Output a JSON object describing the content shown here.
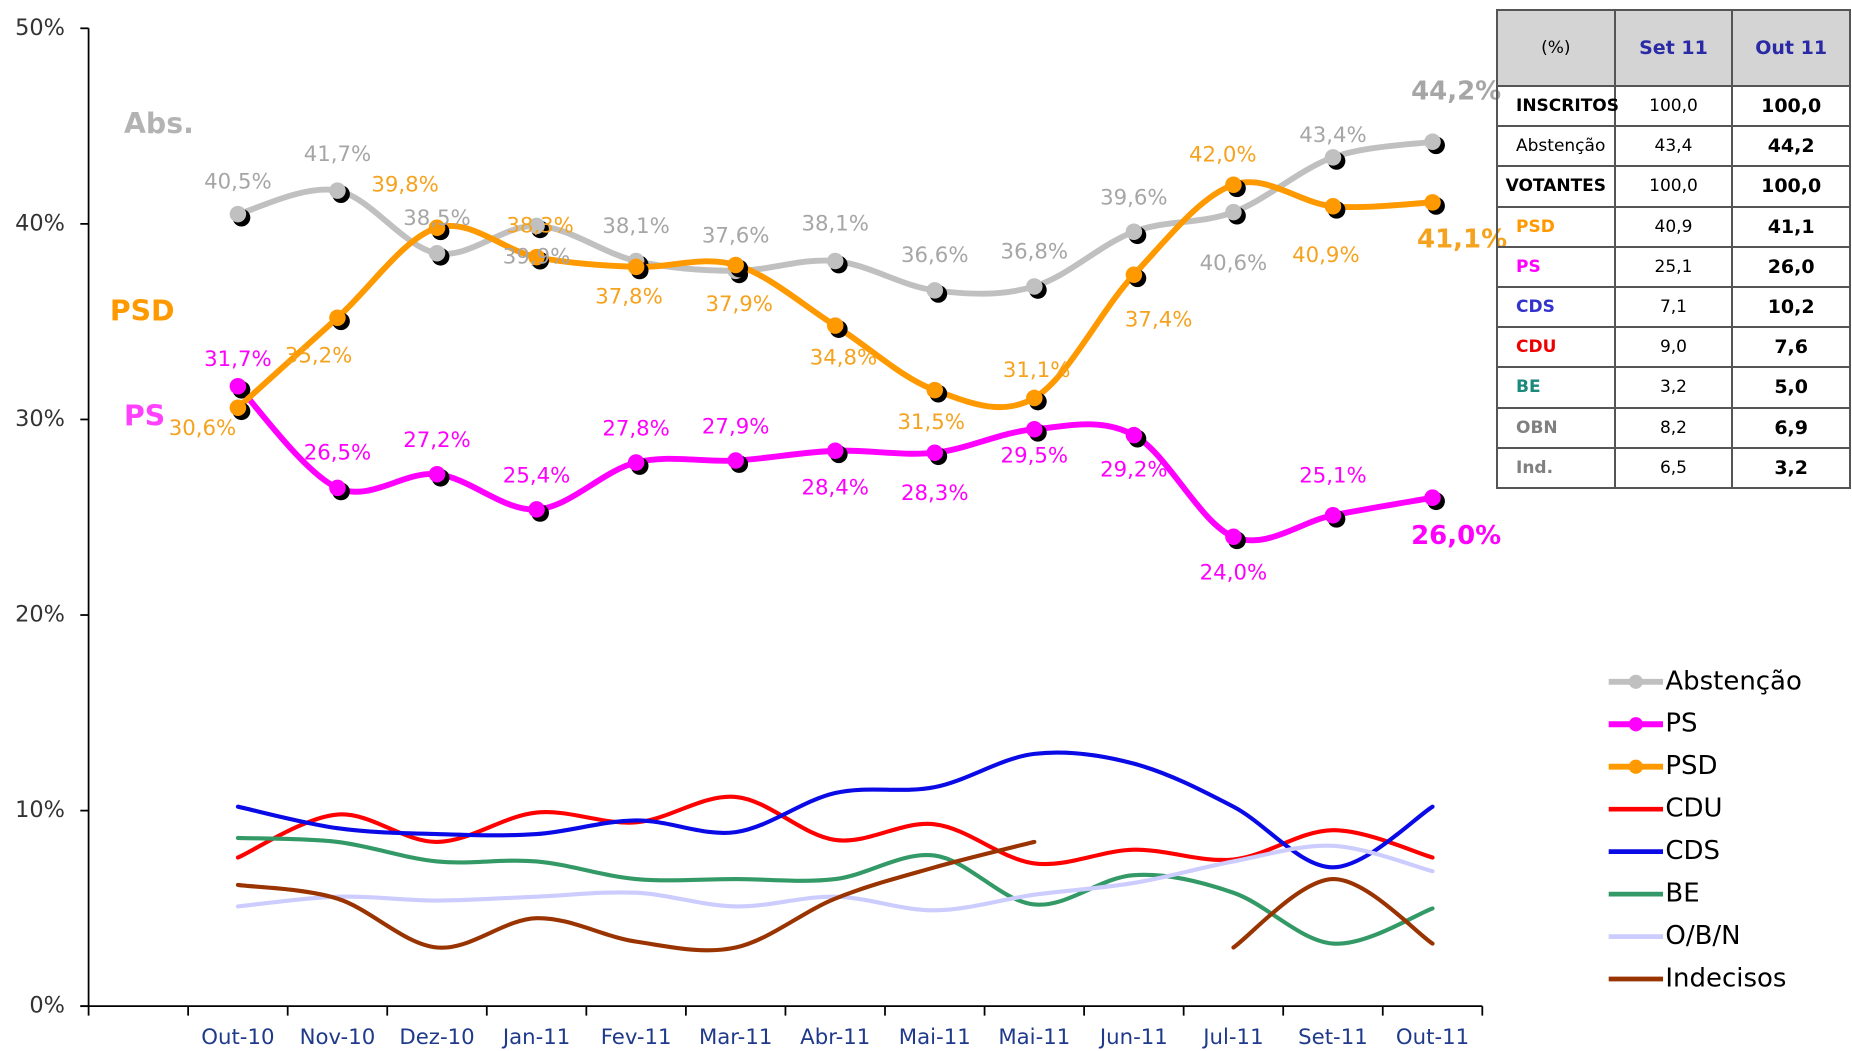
{
  "chart_data": {
    "type": "line",
    "categories": [
      "Out-10",
      "Nov-10",
      "Dez-10",
      "Jan-11",
      "Fev-11",
      "Mar-11",
      "Abr-11",
      "Mai-11",
      "Mai-11",
      "Jun-11",
      "Jul-11",
      "Set-11",
      "Out-11"
    ],
    "ylim": [
      0,
      50
    ],
    "yticks": [
      {
        "value": 0,
        "label": "0%"
      },
      {
        "value": 10,
        "label": "10%"
      },
      {
        "value": 20,
        "label": "20%"
      },
      {
        "value": 30,
        "label": "30%"
      },
      {
        "value": 40,
        "label": "40%"
      },
      {
        "value": 50,
        "label": "50%"
      }
    ],
    "legend": "lower right",
    "annotations": [
      {
        "text": "Abs.",
        "color": "#b3b3b3"
      },
      {
        "text": "PSD",
        "color": "#ff9900"
      },
      {
        "text": "PS",
        "color": "#ff40ff"
      }
    ],
    "series": [
      {
        "name": "Abstenção",
        "color": "#c0c0c0",
        "label_color": "#a6a6a6",
        "marker": true,
        "values": [
          40.5,
          41.7,
          38.5,
          39.9,
          38.1,
          37.6,
          38.1,
          36.6,
          36.8,
          39.6,
          40.6,
          43.4,
          44.2
        ],
        "value_labels": [
          "40,5%",
          "41,7%",
          "38,5%",
          "39,9%",
          "38,1%",
          "37,6%",
          "38,1%",
          "36,6%",
          "36,8%",
          "39,6%",
          "40,6%",
          "43,4%",
          "44,2%"
        ]
      },
      {
        "name": "PS",
        "color": "#ff00ff",
        "label_color": "#ff00ff",
        "marker": true,
        "values": [
          31.7,
          26.5,
          27.2,
          25.4,
          27.8,
          27.9,
          28.4,
          28.3,
          29.5,
          29.2,
          24.0,
          25.1,
          26.0
        ],
        "value_labels": [
          "31,7%",
          "26,5%",
          "27,2%",
          "25,4%",
          "27,8%",
          "27,9%",
          "28,4%",
          "28,3%",
          "29,5%",
          "29,2%",
          "24,0%",
          "25,1%",
          "26,0%"
        ]
      },
      {
        "name": "PSD",
        "color": "#ff9900",
        "label_color": "#f5a31f",
        "marker": true,
        "values": [
          30.6,
          35.2,
          39.8,
          38.3,
          37.8,
          37.9,
          34.8,
          31.5,
          31.1,
          37.4,
          42.0,
          40.9,
          41.1
        ],
        "value_labels": [
          "30,6%",
          "35,2%",
          "39,8%",
          "38,3%",
          "37,8%",
          "37,9%",
          "34,8%",
          "31,5%",
          "31,1%",
          "37,4%",
          "42,0%",
          "40,9%",
          "41,1%"
        ]
      },
      {
        "name": "CDU",
        "color": "#ff0000",
        "values": [
          7.6,
          9.8,
          8.4,
          9.9,
          9.4,
          10.7,
          8.5,
          9.3,
          7.3,
          8.0,
          7.5,
          9.0,
          7.6
        ]
      },
      {
        "name": "CDS",
        "color": "#0a0ae6",
        "values": [
          10.2,
          9.1,
          8.8,
          8.8,
          9.5,
          8.9,
          10.9,
          11.2,
          12.9,
          12.4,
          10.2,
          7.1,
          10.2
        ]
      },
      {
        "name": "BE",
        "color": "#339966",
        "values": [
          8.6,
          8.4,
          7.4,
          7.4,
          6.5,
          6.5,
          6.5,
          7.7,
          5.2,
          6.7,
          5.8,
          3.2,
          5.0
        ]
      },
      {
        "name": "O/B/N",
        "color": "#ccccff",
        "values": [
          5.1,
          5.6,
          5.4,
          5.6,
          5.8,
          5.1,
          5.6,
          4.9,
          5.7,
          6.3,
          7.4,
          8.2,
          6.9
        ]
      },
      {
        "name": "Indecisos",
        "color": "#993300",
        "values": [
          6.2,
          5.5,
          3.0,
          4.5,
          3.3,
          3.0,
          5.5,
          7.1,
          8.4,
          null,
          3.0,
          6.5,
          3.2
        ]
      }
    ]
  },
  "table": {
    "header": [
      "(%)",
      "Set 11",
      "Out 11"
    ],
    "rows": [
      [
        "INSCRITOS",
        "100,0",
        "100,0"
      ],
      [
        "Abstenção",
        "43,4",
        "44,2"
      ],
      [
        "VOTANTES",
        "100,0",
        "100,0"
      ],
      [
        "PSD",
        "40,9",
        "41,1"
      ],
      [
        "PS",
        "25,1",
        "26,0"
      ],
      [
        "CDS",
        "7,1",
        "10,2"
      ],
      [
        "CDU",
        "9,0",
        "7,6"
      ],
      [
        "BE",
        "3,2",
        "5,0"
      ],
      [
        "OBN",
        "8,2",
        "6,9"
      ],
      [
        "Ind.",
        "6,5",
        "3,2"
      ]
    ]
  }
}
